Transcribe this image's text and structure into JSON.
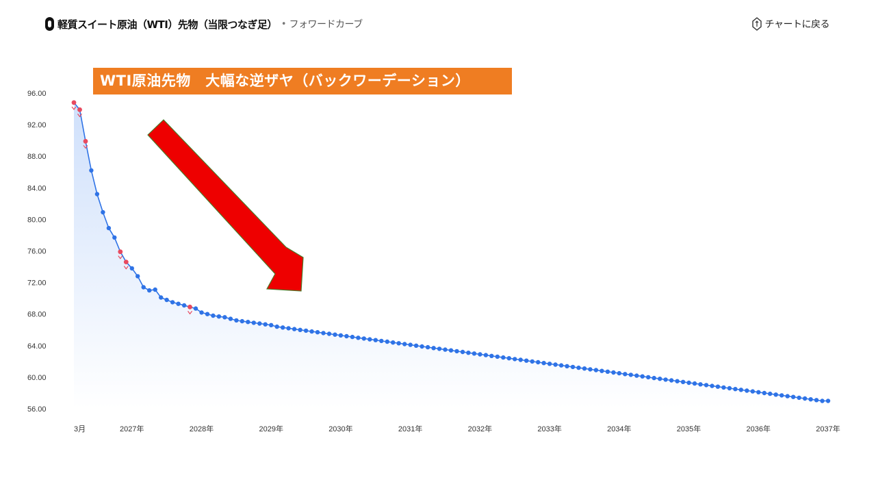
{
  "header": {
    "title": "軽質スイート原油（WTI）先物（当限つなぎ足）",
    "separator": "•",
    "subtitle": "フォワードカーブ",
    "back_label": "チャートに戻る"
  },
  "banner": {
    "text": "WTI原油先物　大幅な逆ザヤ（バックワーデーション）",
    "color": "#ef7d22"
  },
  "colors": {
    "line": "#2f73e6",
    "marker": "#2f73e6",
    "highlight_marker": "#e84a5f",
    "area_top": "#cfe0fb",
    "area_bottom": "#ffffff",
    "arrow_fill": "#ee0000",
    "arrow_stroke": "#4c7a2a"
  },
  "chart_data": {
    "type": "area",
    "title": "",
    "xlabel": "",
    "ylabel": "",
    "ylim": [
      56,
      96
    ],
    "yticks": [
      "96.00",
      "92.00",
      "88.00",
      "84.00",
      "80.00",
      "76.00",
      "72.00",
      "68.00",
      "64.00",
      "60.00",
      "56.00"
    ],
    "xticks": [
      {
        "label": "3月",
        "month": 0
      },
      {
        "label": "2027年",
        "month": 10
      },
      {
        "label": "2028年",
        "month": 22
      },
      {
        "label": "2029年",
        "month": 34
      },
      {
        "label": "2030年",
        "month": 46
      },
      {
        "label": "2031年",
        "month": 58
      },
      {
        "label": "2032年",
        "month": 70
      },
      {
        "label": "2033年",
        "month": 82
      },
      {
        "label": "2034年",
        "month": 94
      },
      {
        "label": "2035年",
        "month": 106
      },
      {
        "label": "2036年",
        "month": 118
      },
      {
        "label": "2037年",
        "month": 130
      }
    ],
    "x_range": [
      0,
      130
    ],
    "series": [
      {
        "values": [
          94.8,
          93.9,
          89.9,
          86.2,
          83.2,
          80.9,
          78.9,
          77.7,
          75.9,
          74.6,
          73.8,
          72.8,
          71.4,
          71.0,
          71.1,
          70.1,
          69.8,
          69.5,
          69.3,
          69.1,
          68.9,
          68.7,
          68.2,
          68.0,
          67.8,
          67.7,
          67.6,
          67.4,
          67.2,
          67.1,
          67.0,
          66.9,
          66.8,
          66.7,
          66.6,
          66.4,
          66.3,
          66.2,
          66.1,
          66.0,
          65.9,
          65.8,
          65.7,
          65.6,
          65.5,
          65.4,
          65.3,
          65.2,
          65.1,
          65.0,
          64.9,
          64.8,
          64.7,
          64.6,
          64.5,
          64.4,
          64.3,
          64.2,
          64.1,
          64.0,
          63.9,
          63.8,
          63.7,
          63.6,
          63.5,
          63.4,
          63.3,
          63.2,
          63.1,
          63.0,
          62.9,
          62.8,
          62.7,
          62.6,
          62.5,
          62.4,
          62.3,
          62.2,
          62.1,
          62.0,
          61.9,
          61.8,
          61.7,
          61.6,
          61.5,
          61.4,
          61.3,
          61.2,
          61.1,
          61.0,
          60.9,
          60.8,
          60.7,
          60.6,
          60.5,
          60.4,
          60.3,
          60.2,
          60.1,
          60.0,
          59.9,
          59.8,
          59.7,
          59.6,
          59.5,
          59.4,
          59.3,
          59.2,
          59.1,
          59.0,
          58.9,
          58.8,
          58.7,
          58.6,
          58.5,
          58.4,
          58.3,
          58.2,
          58.1,
          58.0,
          57.9,
          57.8,
          57.7,
          57.6,
          57.5,
          57.4,
          57.3,
          57.2,
          57.1,
          57.0,
          57.0
        ],
        "highlighted_indices": [
          0,
          1,
          2,
          8,
          9,
          20
        ]
      }
    ],
    "grid": false,
    "legend": "none"
  }
}
